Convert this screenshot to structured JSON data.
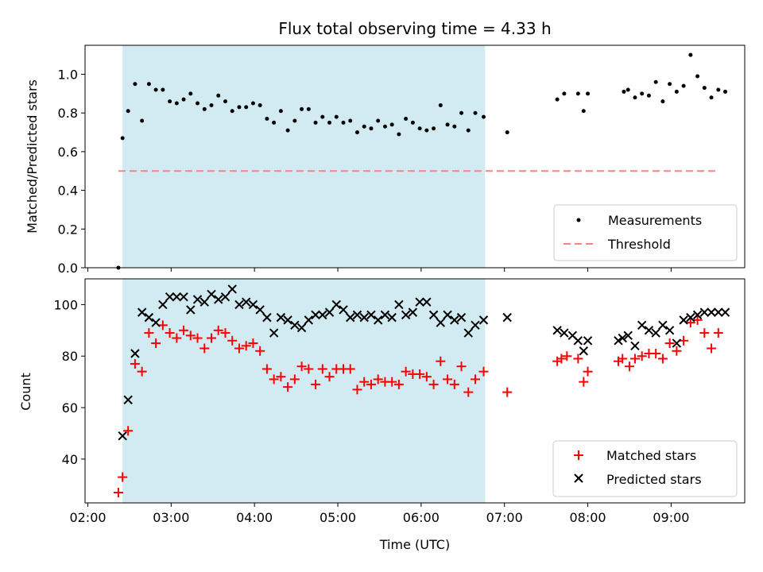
{
  "chart_data": [
    {
      "type": "scatter",
      "title": "Flux total observing time = 4.33 h",
      "xlabel": "",
      "ylabel": "Matched/Predicted stars",
      "ylim": [
        0,
        1.15
      ],
      "y_ticks": [
        "0.0",
        "0.2",
        "0.4",
        "0.6",
        "0.8",
        "1.0"
      ],
      "y_tick_values": [
        0,
        0.2,
        0.4,
        0.6,
        0.8,
        1.0
      ],
      "x_ticks": [
        "02:00",
        "03:00",
        "04:00",
        "05:00",
        "06:00",
        "07:00",
        "08:00",
        "09:00"
      ],
      "xlim": [
        "01:58",
        "09:53"
      ],
      "shaded_interval": [
        "02:25",
        "06:46"
      ],
      "shade_color": "#add8e6",
      "legend_position": "lower-right",
      "series": [
        {
          "name": "Measurements",
          "marker": "dot",
          "color": "#000000",
          "x": [
            "02:22",
            "02:25",
            "02:29",
            "02:34",
            "02:39",
            "02:44",
            "02:49",
            "02:54",
            "02:59",
            "03:04",
            "03:09",
            "03:14",
            "03:19",
            "03:24",
            "03:29",
            "03:34",
            "03:39",
            "03:44",
            "03:49",
            "03:54",
            "03:59",
            "04:04",
            "04:09",
            "04:14",
            "04:19",
            "04:24",
            "04:29",
            "04:34",
            "04:39",
            "04:44",
            "04:49",
            "04:54",
            "04:59",
            "05:04",
            "05:09",
            "05:14",
            "05:19",
            "05:24",
            "05:29",
            "05:34",
            "05:39",
            "05:44",
            "05:49",
            "05:54",
            "05:59",
            "06:04",
            "06:09",
            "06:14",
            "06:19",
            "06:24",
            "06:29",
            "06:34",
            "06:39",
            "06:45",
            "07:02",
            "07:38",
            "07:43",
            "07:53",
            "07:57",
            "08:00",
            "08:26",
            "08:29",
            "08:34",
            "08:39",
            "08:44",
            "08:49",
            "08:54",
            "08:59",
            "09:04",
            "09:09",
            "09:14",
            "09:19",
            "09:24",
            "09:29",
            "09:34",
            "09:39"
          ],
          "y": [
            0.0,
            0.67,
            0.81,
            0.95,
            0.76,
            0.95,
            0.92,
            0.92,
            0.86,
            0.85,
            0.87,
            0.9,
            0.85,
            0.82,
            0.84,
            0.89,
            0.86,
            0.81,
            0.83,
            0.83,
            0.85,
            0.84,
            0.77,
            0.75,
            0.81,
            0.71,
            0.76,
            0.82,
            0.82,
            0.75,
            0.78,
            0.75,
            0.78,
            0.75,
            0.76,
            0.7,
            0.73,
            0.72,
            0.76,
            0.73,
            0.74,
            0.69,
            0.77,
            0.75,
            0.72,
            0.71,
            0.72,
            0.84,
            0.74,
            0.73,
            0.8,
            0.71,
            0.8,
            0.78,
            0.7,
            0.87,
            0.9,
            0.9,
            0.81,
            0.9,
            0.91,
            0.92,
            0.88,
            0.9,
            0.89,
            0.96,
            0.86,
            0.95,
            0.91,
            0.94,
            1.1,
            0.99,
            0.93,
            0.88,
            0.92,
            0.91
          ]
        },
        {
          "name": "Threshold",
          "marker": "dashed-line",
          "color": "#ff8080",
          "x": [
            "02:22",
            "09:33"
          ],
          "y": [
            0.5,
            0.5
          ]
        }
      ]
    },
    {
      "type": "scatter",
      "title": "",
      "xlabel": "Time (UTC)",
      "ylabel": "Count",
      "ylim": [
        23,
        110
      ],
      "y_ticks": [
        "40",
        "60",
        "80",
        "100"
      ],
      "y_tick_values": [
        40,
        60,
        80,
        100
      ],
      "x_ticks": [
        "02:00",
        "03:00",
        "04:00",
        "05:00",
        "06:00",
        "07:00",
        "08:00",
        "09:00"
      ],
      "xlim": [
        "01:58",
        "09:53"
      ],
      "shaded_interval": [
        "02:25",
        "06:46"
      ],
      "shade_color": "#add8e6",
      "legend_position": "lower-right",
      "series": [
        {
          "name": "Matched stars",
          "marker": "plus",
          "color": "#ff0000",
          "x": [
            "02:22",
            "02:25",
            "02:29",
            "02:34",
            "02:39",
            "02:44",
            "02:49",
            "02:54",
            "02:59",
            "03:04",
            "03:09",
            "03:14",
            "03:19",
            "03:24",
            "03:29",
            "03:34",
            "03:39",
            "03:44",
            "03:49",
            "03:54",
            "03:59",
            "04:04",
            "04:09",
            "04:14",
            "04:19",
            "04:24",
            "04:29",
            "04:34",
            "04:39",
            "04:44",
            "04:49",
            "04:54",
            "04:59",
            "05:04",
            "05:09",
            "05:14",
            "05:19",
            "05:24",
            "05:29",
            "05:34",
            "05:39",
            "05:44",
            "05:49",
            "05:54",
            "05:59",
            "06:04",
            "06:09",
            "06:14",
            "06:19",
            "06:24",
            "06:29",
            "06:34",
            "06:39",
            "06:45",
            "07:02",
            "07:38",
            "07:41",
            "07:45",
            "07:53",
            "07:57",
            "08:00",
            "08:22",
            "08:25",
            "08:30",
            "08:34",
            "08:39",
            "08:44",
            "08:49",
            "08:54",
            "08:59",
            "09:04",
            "09:09",
            "09:14",
            "09:19",
            "09:24",
            "09:29",
            "09:34"
          ],
          "y": [
            27,
            33,
            51,
            77,
            74,
            89,
            85,
            92,
            89,
            87,
            90,
            88,
            87,
            83,
            87,
            90,
            89,
            86,
            83,
            84,
            85,
            82,
            75,
            71,
            72,
            68,
            71,
            76,
            75,
            69,
            75,
            72,
            75,
            75,
            75,
            67,
            70,
            69,
            71,
            70,
            70,
            69,
            74,
            73,
            73,
            72,
            69,
            78,
            71,
            69,
            76,
            66,
            71,
            74,
            66,
            78,
            79,
            80,
            79,
            70,
            74,
            78,
            79,
            76,
            79,
            80,
            81,
            81,
            79,
            85,
            82,
            86,
            93,
            94,
            89,
            83,
            89
          ]
        },
        {
          "name": "Predicted stars",
          "marker": "x",
          "color": "#000000",
          "x": [
            "02:25",
            "02:29",
            "02:34",
            "02:39",
            "02:44",
            "02:49",
            "02:54",
            "02:59",
            "03:04",
            "03:09",
            "03:14",
            "03:19",
            "03:24",
            "03:29",
            "03:34",
            "03:39",
            "03:44",
            "03:49",
            "03:54",
            "03:59",
            "04:04",
            "04:09",
            "04:14",
            "04:19",
            "04:24",
            "04:29",
            "04:34",
            "04:39",
            "04:44",
            "04:49",
            "04:54",
            "04:59",
            "05:04",
            "05:09",
            "05:14",
            "05:19",
            "05:24",
            "05:29",
            "05:34",
            "05:39",
            "05:44",
            "05:49",
            "05:54",
            "05:59",
            "06:04",
            "06:09",
            "06:14",
            "06:19",
            "06:24",
            "06:29",
            "06:34",
            "06:39",
            "06:45",
            "07:02",
            "07:38",
            "07:43",
            "07:49",
            "07:53",
            "07:57",
            "08:00",
            "08:22",
            "08:25",
            "08:29",
            "08:34",
            "08:39",
            "08:44",
            "08:49",
            "08:54",
            "08:59",
            "09:04",
            "09:09",
            "09:14",
            "09:19",
            "09:24",
            "09:29",
            "09:34",
            "09:39"
          ],
          "y": [
            49,
            63,
            81,
            97,
            95,
            93,
            100,
            103,
            103,
            103,
            98,
            102,
            101,
            104,
            102,
            103,
            106,
            100,
            101,
            100,
            98,
            95,
            89,
            95,
            94,
            92,
            91,
            94,
            96,
            96,
            97,
            100,
            98,
            95,
            96,
            95,
            96,
            94,
            96,
            95,
            100,
            96,
            97,
            101,
            101,
            96,
            93,
            96,
            94,
            95,
            89,
            92,
            94,
            95,
            90,
            89,
            88,
            86,
            82,
            86,
            86,
            87,
            88,
            84,
            92,
            90,
            89,
            92,
            90,
            85,
            94,
            95,
            96,
            97,
            97,
            97,
            97
          ]
        }
      ]
    }
  ]
}
